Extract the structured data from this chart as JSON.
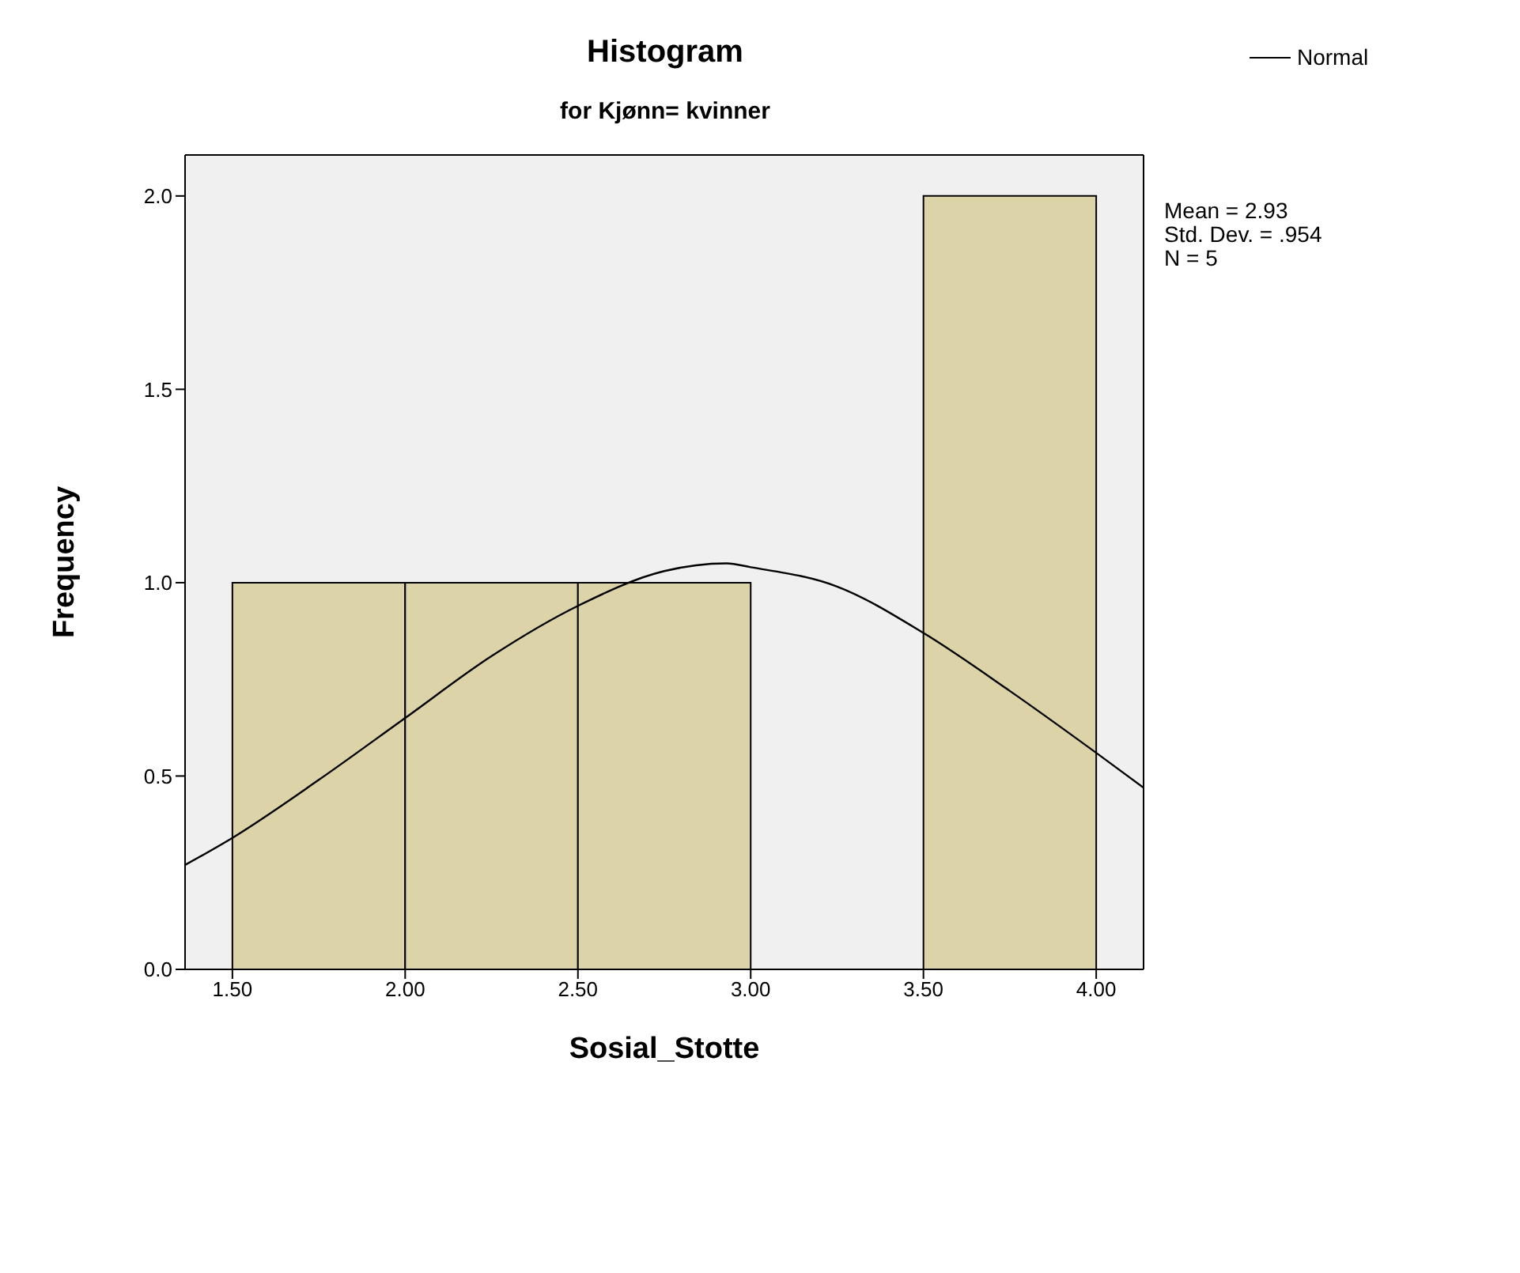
{
  "chart_data": {
    "type": "histogram",
    "title": "Histogram",
    "subtitle": "for Kjønn= kvinner",
    "xlabel": "Sosial_Stotte",
    "ylabel": "Frequency",
    "bins": [
      1.5,
      2.0,
      2.5,
      3.0,
      3.5,
      4.0
    ],
    "values": [
      1,
      1,
      1,
      0,
      2
    ],
    "color": "#dcd4a8",
    "series": [
      {
        "name": "Normal",
        "type": "line",
        "color": "#000000",
        "x": [
          1.363,
          1.5,
          1.75,
          2.0,
          2.25,
          2.5,
          2.75,
          2.93,
          3.0,
          3.25,
          3.5,
          3.75,
          4.0,
          4.137
        ],
        "values": [
          0.27,
          0.34,
          0.49,
          0.65,
          0.81,
          0.94,
          1.03,
          1.05,
          1.04,
          0.99,
          0.87,
          0.72,
          0.56,
          0.47
        ]
      }
    ],
    "xlim": [
      1.363,
      4.137
    ],
    "ylim": [
      0,
      2.106
    ],
    "xticks": [
      {
        "value": 1.5,
        "label": "1.50"
      },
      {
        "value": 2.0,
        "label": "2.00"
      },
      {
        "value": 2.5,
        "label": "2.50"
      },
      {
        "value": 3.0,
        "label": "3.00"
      },
      {
        "value": 3.5,
        "label": "3.50"
      },
      {
        "value": 4.0,
        "label": "4.00"
      }
    ],
    "yticks": [
      {
        "value": 0,
        "label": "0.0"
      },
      {
        "value": 0.5,
        "label": "0.5"
      },
      {
        "value": 1.0,
        "label": "1.0"
      },
      {
        "value": 1.5,
        "label": "1.5"
      },
      {
        "value": 2.0,
        "label": "2.0"
      }
    ],
    "annotations": [
      "Mean = 2.93",
      "Std. Dev. = .954",
      "N = 5"
    ],
    "legend": "top right",
    "marker": "none",
    "line_style": "solid"
  }
}
